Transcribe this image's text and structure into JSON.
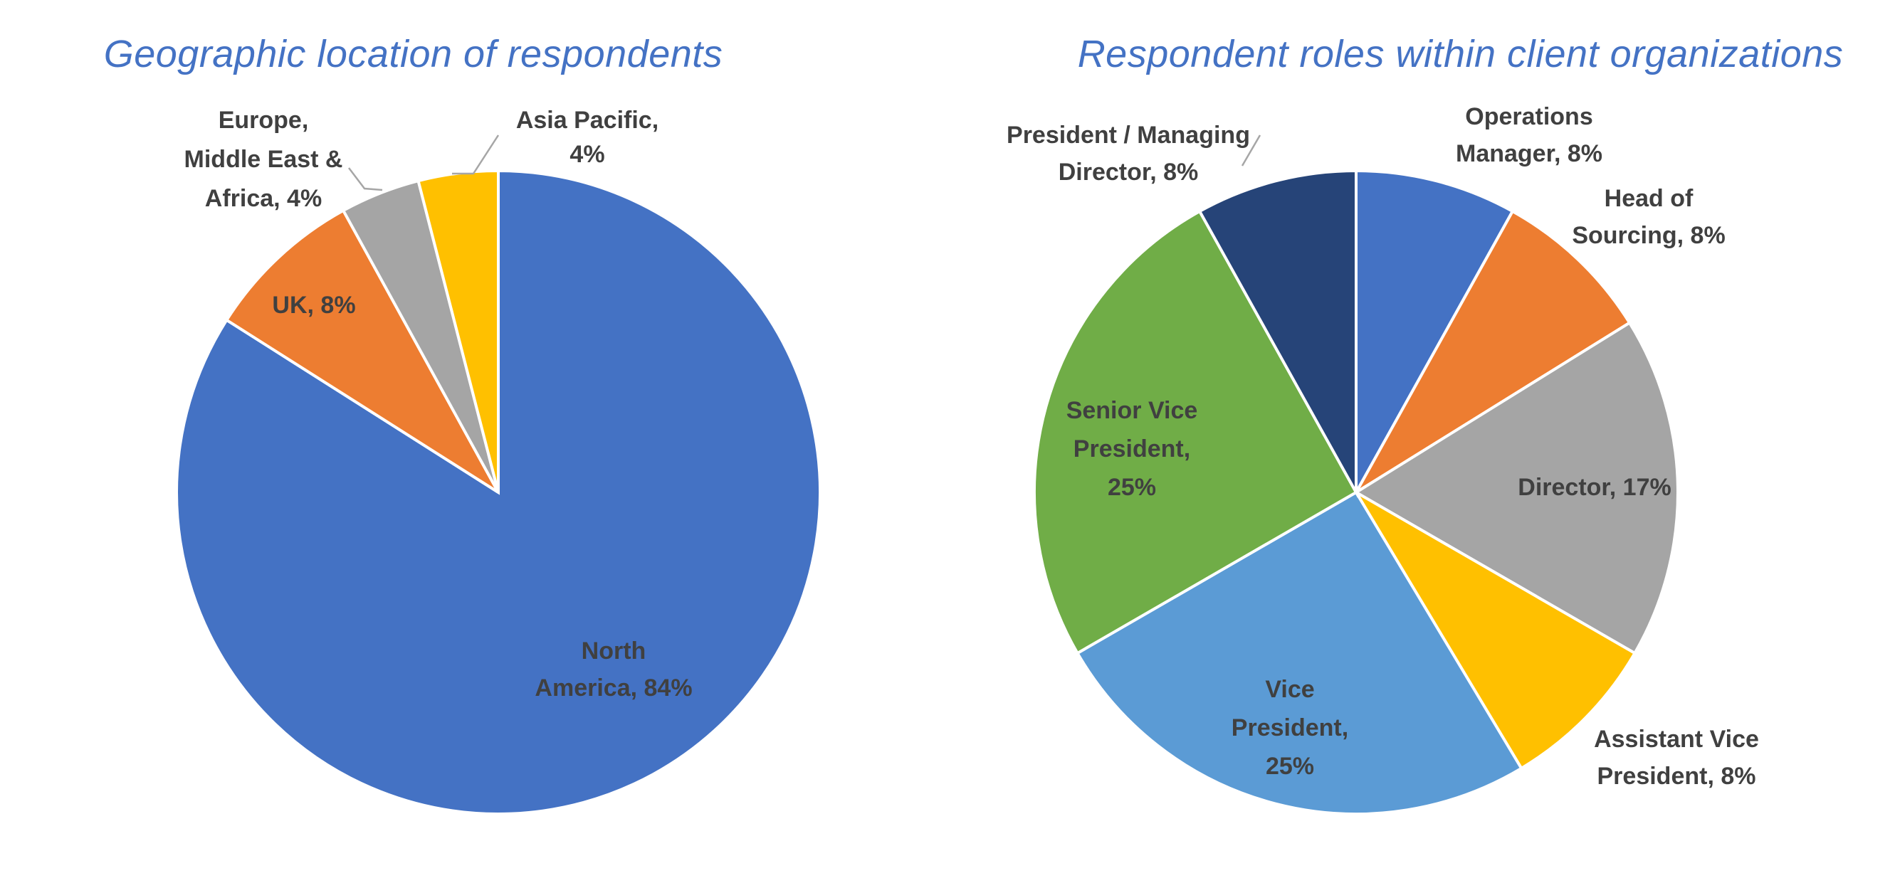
{
  "chart_data": [
    {
      "type": "pie",
      "title": "Geographic location of respondents",
      "slices": [
        {
          "label_lines": [
            "North",
            "America, 84%"
          ],
          "category": "North America",
          "value": 84,
          "color": "#4472C4"
        },
        {
          "label_lines": [
            "UK,  8%"
          ],
          "category": "UK",
          "value": 8,
          "color": "#ED7D31"
        },
        {
          "label_lines": [
            "Europe,",
            "Middle East &",
            "Africa, 4%"
          ],
          "category": "Europe, Middle East & Africa",
          "value": 4,
          "color": "#A5A5A5"
        },
        {
          "label_lines": [
            "Asia Pacific,",
            "4%"
          ],
          "category": "Asia Pacific",
          "value": 4,
          "color": "#FFC000"
        }
      ]
    },
    {
      "type": "pie",
      "title": "Respondent roles within client organizations",
      "slices": [
        {
          "label_lines": [
            "Operations",
            "Manager, 8%"
          ],
          "category": "Operations Manager",
          "value": 8,
          "color": "#4472C4"
        },
        {
          "label_lines": [
            "Head of",
            "Sourcing, 8%"
          ],
          "category": "Head of Sourcing",
          "value": 8,
          "color": "#ED7D31"
        },
        {
          "label_lines": [
            "Director, 17%"
          ],
          "category": "Director",
          "value": 17,
          "color": "#A5A5A5"
        },
        {
          "label_lines": [
            "Assistant Vice",
            "President, 8%"
          ],
          "category": "Assistant Vice President",
          "value": 8,
          "color": "#FFC000"
        },
        {
          "label_lines": [
            "Vice",
            "President,",
            "25%"
          ],
          "category": "Vice President",
          "value": 25,
          "color": "#5B9BD5"
        },
        {
          "label_lines": [
            "Senior Vice",
            "President,",
            "25%"
          ],
          "category": "Senior Vice President",
          "value": 25,
          "color": "#70AD47"
        },
        {
          "label_lines": [
            "President / Managing",
            "Director, 8%"
          ],
          "category": "President / Managing Director",
          "value": 8,
          "color": "#264478"
        }
      ]
    }
  ]
}
